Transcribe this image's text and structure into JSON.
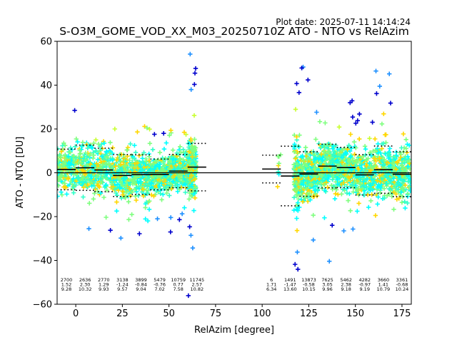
{
  "plot_date": "Plot date: 2025-07-11 14:14:24",
  "chart_data": {
    "type": "scatter",
    "title": "S-O3M_GOME_VOD_XX_M03_20250710Z ATO - NTO vs RelAzim",
    "xlabel": "RelAzim [degree]",
    "ylabel": "ATO - NTO [DU]",
    "xlim": [
      -10,
      180
    ],
    "ylim": [
      -60,
      60
    ],
    "xticks": [
      0,
      25,
      50,
      75,
      100,
      125,
      150,
      175
    ],
    "yticks": [
      -60,
      -40,
      -20,
      0,
      20,
      40,
      60
    ],
    "zero_line": 0,
    "bins": [
      {
        "x": -5,
        "count": "2700",
        "mean": "1.52",
        "std": "9.28",
        "mean_val": 1.52,
        "std_val": 9.28,
        "lo": -20,
        "hi": 30
      },
      {
        "x": 5,
        "count": "2636",
        "mean": "2.30",
        "std": "10.32",
        "mean_val": 2.3,
        "std_val": 10.32,
        "lo": -34,
        "hi": 30
      },
      {
        "x": 15,
        "count": "2770",
        "mean": "1.29",
        "std": "9.93",
        "mean_val": 1.29,
        "std_val": 9.93,
        "lo": -37,
        "hi": 28
      },
      {
        "x": 25,
        "count": "3138",
        "mean": "-1.24",
        "std": "9.57",
        "mean_val": -1.24,
        "std_val": 9.57,
        "lo": -30,
        "hi": 28
      },
      {
        "x": 35,
        "count": "3899",
        "mean": "-0.84",
        "std": "9.04",
        "mean_val": -0.84,
        "std_val": 9.04,
        "lo": -28,
        "hi": 22
      },
      {
        "x": 45,
        "count": "5479",
        "mean": "-0.76",
        "std": "7.02",
        "mean_val": -0.76,
        "std_val": 7.02,
        "lo": -26,
        "hi": 20
      },
      {
        "x": 55,
        "count": "10759",
        "mean": "0.77",
        "std": "7.58",
        "mean_val": 0.77,
        "std_val": 7.58,
        "lo": -33,
        "hi": 24
      },
      {
        "x": 65,
        "count": "11745",
        "mean": "2.57",
        "std": "10.82",
        "mean_val": 2.57,
        "std_val": 10.82,
        "lo": -58,
        "hi": 55
      },
      {
        "x": 105,
        "count": "6",
        "mean": "1.71",
        "std": "6.34",
        "mean_val": 1.71,
        "std_val": 6.34,
        "lo": -19,
        "hi": 12
      },
      {
        "x": 115,
        "count": "1491",
        "mean": "-1.47",
        "std": "13.60",
        "mean_val": -1.47,
        "std_val": 13.6,
        "lo": -46,
        "hi": 51
      },
      {
        "x": 125,
        "count": "13873",
        "mean": "-0.58",
        "std": "10.15",
        "mean_val": -0.58,
        "std_val": 10.15,
        "lo": -45,
        "hi": 49
      },
      {
        "x": 135,
        "count": "7625",
        "mean": "3.05",
        "std": "9.96",
        "mean_val": 3.05,
        "std_val": 9.96,
        "lo": -45,
        "hi": 38
      },
      {
        "x": 145,
        "count": "5462",
        "mean": "2.38",
        "std": "9.18",
        "mean_val": 2.38,
        "std_val": 9.18,
        "lo": -34,
        "hi": 35
      },
      {
        "x": 155,
        "count": "4282",
        "mean": "-0.97",
        "std": "9.19",
        "mean_val": -0.97,
        "std_val": 9.19,
        "lo": -31,
        "hi": 30
      },
      {
        "x": 165,
        "count": "3660",
        "mean": "1.41",
        "std": "10.79",
        "mean_val": 1.41,
        "std_val": 10.79,
        "lo": -28,
        "hi": 53
      },
      {
        "x": 175,
        "count": "3361",
        "mean": "-0.68",
        "std": "10.24",
        "mean_val": -0.68,
        "std_val": 10.24,
        "lo": -25,
        "hi": 26
      }
    ],
    "point_colors": [
      "#00ffff",
      "#30ffc8",
      "#7fff7f",
      "#7fff7f",
      "#c8ff30",
      "#ffd700",
      "#1e90ff",
      "#0000cd"
    ],
    "grid": false,
    "legend": "none"
  }
}
